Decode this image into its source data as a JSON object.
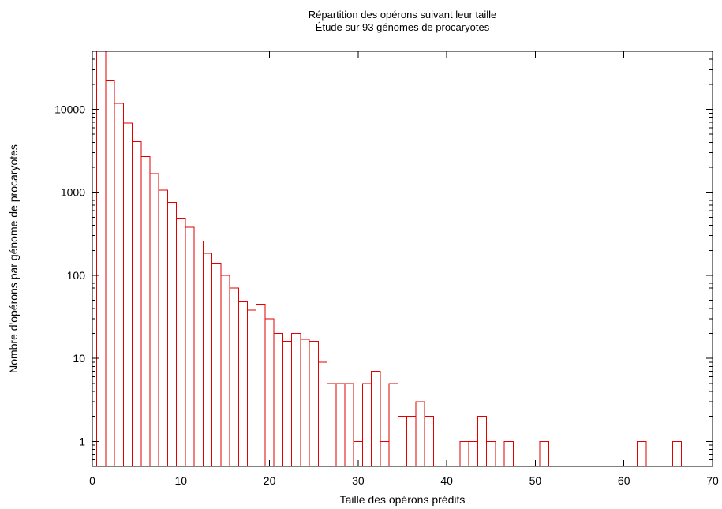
{
  "chart_data": {
    "type": "bar",
    "title": "Répartition des opérons suivant leur taille",
    "subtitle": "Étude sur 93 génomes de procaryotes",
    "xlabel": "Taille des opérons prédits",
    "ylabel": "Nombre d'opérons par génome de procaryotes",
    "xlim": [
      0,
      70
    ],
    "ylim": [
      0.5,
      50000
    ],
    "yscale": "log",
    "grid": false,
    "bar_color": "#e00000",
    "x_ticks": [
      0,
      10,
      20,
      30,
      40,
      50,
      60,
      70
    ],
    "y_ticks": [
      1,
      10,
      100,
      1000,
      10000
    ],
    "x": [
      1,
      2,
      3,
      4,
      5,
      6,
      7,
      8,
      9,
      10,
      11,
      12,
      13,
      14,
      15,
      16,
      17,
      18,
      19,
      20,
      21,
      22,
      23,
      24,
      25,
      26,
      27,
      28,
      29,
      30,
      31,
      32,
      33,
      34,
      35,
      36,
      37,
      38,
      42,
      43,
      44,
      45,
      47,
      51,
      62,
      66
    ],
    "values": [
      50000,
      22000,
      11800,
      6800,
      4100,
      2700,
      1680,
      1060,
      760,
      490,
      380,
      260,
      185,
      140,
      100,
      70,
      48,
      38,
      45,
      30,
      20,
      16,
      20,
      17,
      16,
      9,
      5,
      5,
      5,
      1,
      5,
      7,
      1,
      5,
      2,
      2,
      3,
      2,
      1,
      1,
      2,
      1,
      1,
      1,
      1,
      1
    ]
  }
}
